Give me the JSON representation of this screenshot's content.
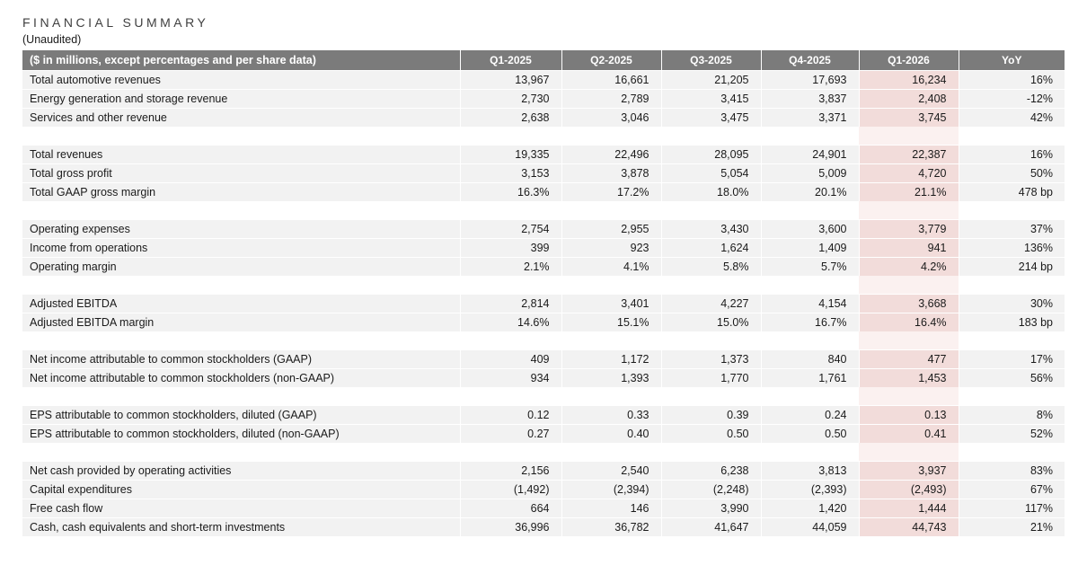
{
  "page": {
    "title": "FINANCIAL SUMMARY",
    "subtitle": "(Unaudited)"
  },
  "colors": {
    "header_bg": "#7b7b7b",
    "header_text": "#ffffff",
    "row_bg": "#f2f2f2",
    "highlight_bg": "#f2dcda",
    "highlight_gap_bg": "#fbf1f0",
    "text": "#1a1a1a"
  },
  "table": {
    "label_header": "($ in millions, except percentages and per share data)",
    "columns": [
      "Q1-2025",
      "Q2-2025",
      "Q3-2025",
      "Q4-2025",
      "Q1-2026",
      "YoY"
    ],
    "highlight_column": "Q1-2026",
    "sections": [
      {
        "rows": [
          {
            "label": "Total automotive revenues",
            "values": [
              "13,967",
              "16,661",
              "21,205",
              "17,693",
              "16,234",
              "16%"
            ]
          },
          {
            "label": "Energy generation and storage revenue",
            "values": [
              "2,730",
              "2,789",
              "3,415",
              "3,837",
              "2,408",
              "-12%"
            ]
          },
          {
            "label": "Services and other revenue",
            "values": [
              "2,638",
              "3,046",
              "3,475",
              "3,371",
              "3,745",
              "42%"
            ]
          }
        ]
      },
      {
        "rows": [
          {
            "label": "Total revenues",
            "values": [
              "19,335",
              "22,496",
              "28,095",
              "24,901",
              "22,387",
              "16%"
            ]
          },
          {
            "label": "Total gross profit",
            "values": [
              "3,153",
              "3,878",
              "5,054",
              "5,009",
              "4,720",
              "50%"
            ]
          },
          {
            "label": "Total GAAP gross margin",
            "values": [
              "16.3%",
              "17.2%",
              "18.0%",
              "20.1%",
              "21.1%",
              "478 bp"
            ]
          }
        ]
      },
      {
        "rows": [
          {
            "label": "Operating expenses",
            "values": [
              "2,754",
              "2,955",
              "3,430",
              "3,600",
              "3,779",
              "37%"
            ]
          },
          {
            "label": "Income from operations",
            "values": [
              "399",
              "923",
              "1,624",
              "1,409",
              "941",
              "136%"
            ]
          },
          {
            "label": "Operating margin",
            "values": [
              "2.1%",
              "4.1%",
              "5.8%",
              "5.7%",
              "4.2%",
              "214 bp"
            ]
          }
        ]
      },
      {
        "rows": [
          {
            "label": "Adjusted EBITDA",
            "values": [
              "2,814",
              "3,401",
              "4,227",
              "4,154",
              "3,668",
              "30%"
            ]
          },
          {
            "label": "Adjusted EBITDA margin",
            "values": [
              "14.6%",
              "15.1%",
              "15.0%",
              "16.7%",
              "16.4%",
              "183 bp"
            ]
          }
        ]
      },
      {
        "rows": [
          {
            "label": "Net income attributable to common stockholders (GAAP)",
            "values": [
              "409",
              "1,172",
              "1,373",
              "840",
              "477",
              "17%"
            ]
          },
          {
            "label": "Net income attributable to common stockholders (non-GAAP)",
            "values": [
              "934",
              "1,393",
              "1,770",
              "1,761",
              "1,453",
              "56%"
            ]
          }
        ]
      },
      {
        "rows": [
          {
            "label": "EPS attributable to common stockholders, diluted (GAAP)",
            "values": [
              "0.12",
              "0.33",
              "0.39",
              "0.24",
              "0.13",
              "8%"
            ]
          },
          {
            "label": "EPS attributable to common stockholders, diluted (non-GAAP)",
            "values": [
              "0.27",
              "0.40",
              "0.50",
              "0.50",
              "0.41",
              "52%"
            ]
          }
        ]
      },
      {
        "rows": [
          {
            "label": "Net cash provided by operating activities",
            "values": [
              "2,156",
              "2,540",
              "6,238",
              "3,813",
              "3,937",
              "83%"
            ]
          },
          {
            "label": "Capital expenditures",
            "values": [
              "(1,492)",
              "(2,394)",
              "(2,248)",
              "(2,393)",
              "(2,493)",
              "67%"
            ]
          },
          {
            "label": "Free cash flow",
            "values": [
              "664",
              "146",
              "3,990",
              "1,420",
              "1,444",
              "117%"
            ]
          },
          {
            "label": "Cash, cash equivalents and short-term investments",
            "values": [
              "36,996",
              "36,782",
              "41,647",
              "44,059",
              "44,743",
              "21%"
            ]
          }
        ]
      }
    ]
  }
}
